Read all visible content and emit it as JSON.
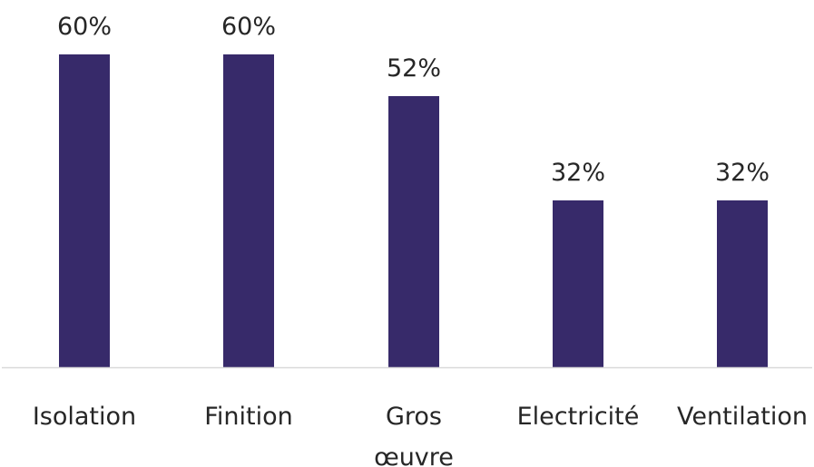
{
  "chart_data": {
    "type": "bar",
    "categories": [
      "Isolation",
      "Finition",
      "Gros œuvre",
      "Electricité",
      "Ventilation"
    ],
    "category_lines": [
      [
        "Isolation"
      ],
      [
        "Finition"
      ],
      [
        "Gros",
        "œuvre"
      ],
      [
        "Electricité"
      ],
      [
        "Ventilation"
      ]
    ],
    "values": [
      60,
      60,
      52,
      32,
      32
    ],
    "value_labels": [
      "60%",
      "60%",
      "52%",
      "32%",
      "32%"
    ],
    "value_unit": "%",
    "ylim": [
      0,
      60
    ],
    "grid": false,
    "legend": "none",
    "colors": {
      "bar": "#372A6A",
      "axis": "#D9D9D9",
      "text": "#262626"
    }
  }
}
